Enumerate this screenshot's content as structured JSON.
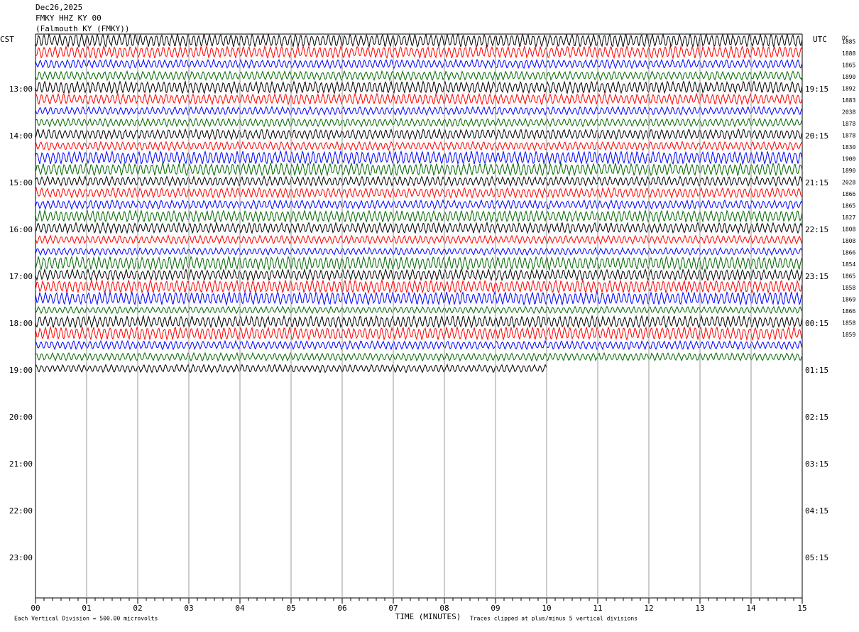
{
  "header": {
    "date": "Dec26,2025",
    "station": "FMKY HHZ KY 00",
    "location": "(Falmouth KY (FMKY))"
  },
  "left_zone": "CST",
  "right_zone": "UTC",
  "dc_header": "DC",
  "left_hours": [
    "13:00",
    "14:00",
    "15:00",
    "16:00",
    "17:00",
    "18:00",
    "19:00",
    "20:00",
    "21:00",
    "22:00",
    "23:00"
  ],
  "right_hours": [
    "19:15",
    "20:15",
    "21:15",
    "22:15",
    "23:15",
    "00:15",
    "01:15",
    "02:15",
    "03:15",
    "04:15",
    "05:15"
  ],
  "dc_labels": [
    "1885",
    "1888",
    "1865",
    "1890",
    "1892",
    "1883",
    "2038",
    "1878",
    "1878",
    "1830",
    "1900",
    "1890",
    "2028",
    "1866",
    "1865",
    "1827",
    "1808",
    "1808",
    "1866",
    "1854",
    "1865",
    "1858",
    "1869",
    "1866",
    "1858",
    "1859"
  ],
  "minute_labels": [
    "00",
    "01",
    "02",
    "03",
    "04",
    "05",
    "06",
    "07",
    "08",
    "09",
    "10",
    "11",
    "12",
    "13",
    "14",
    "15"
  ],
  "x_label": "TIME (MINUTES)",
  "footer_left": "Each Vertical Division =  500.00 microvolts",
  "footer_right": "Traces clipped at plus/minus 5 vertical divisions"
}
